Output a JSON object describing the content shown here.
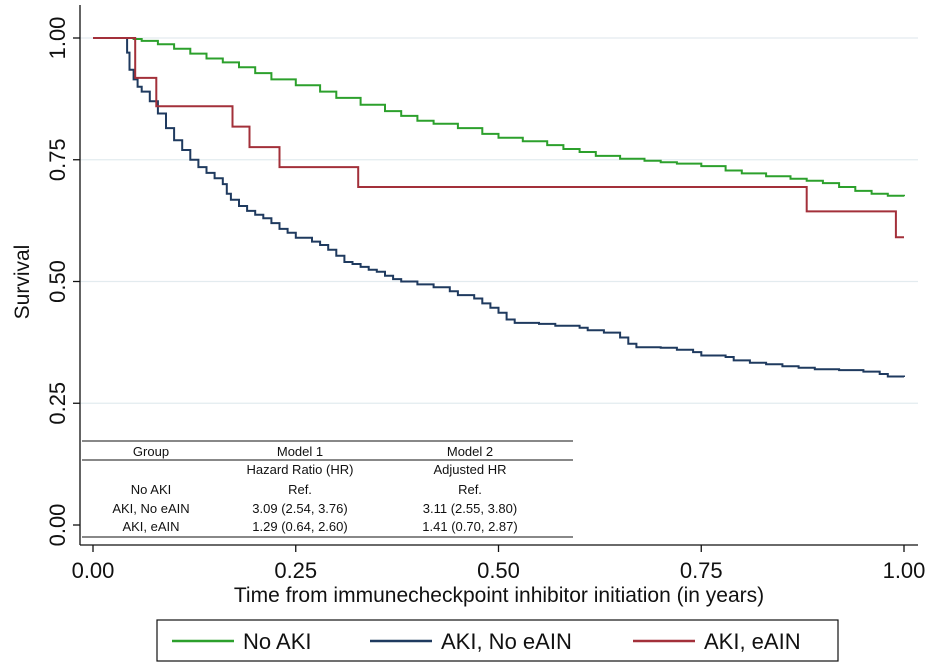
{
  "chart_data": {
    "type": "line",
    "title": "",
    "xlabel": "Time from immunecheckpoint inhibitor initiation (in years)",
    "ylabel": "Survival",
    "xlim": [
      0,
      1
    ],
    "ylim": [
      0,
      1
    ],
    "x_ticks": [
      0,
      0.25,
      0.5,
      0.75,
      1
    ],
    "x_tick_labels": [
      "0.00",
      "0.25",
      "0.50",
      "0.75",
      "1.00"
    ],
    "y_ticks": [
      0,
      0.25,
      0.5,
      0.75,
      1
    ],
    "y_tick_labels": [
      "0.00",
      "0.25",
      "0.50",
      "0.75",
      "1.00"
    ],
    "grid": "horizontal",
    "legend_position": "bottom",
    "series": [
      {
        "name": "No AKI",
        "color": "#2ca02c",
        "step": true,
        "points": [
          [
            0,
            1
          ],
          [
            0.04,
            1
          ],
          [
            0.05,
            0.998
          ],
          [
            0.06,
            0.994
          ],
          [
            0.08,
            0.987
          ],
          [
            0.1,
            0.978
          ],
          [
            0.12,
            0.968
          ],
          [
            0.14,
            0.958
          ],
          [
            0.16,
            0.95
          ],
          [
            0.18,
            0.94
          ],
          [
            0.2,
            0.928
          ],
          [
            0.22,
            0.915
          ],
          [
            0.25,
            0.903
          ],
          [
            0.28,
            0.89
          ],
          [
            0.3,
            0.877
          ],
          [
            0.33,
            0.863
          ],
          [
            0.36,
            0.85
          ],
          [
            0.38,
            0.84
          ],
          [
            0.4,
            0.83
          ],
          [
            0.42,
            0.824
          ],
          [
            0.45,
            0.815
          ],
          [
            0.48,
            0.803
          ],
          [
            0.5,
            0.795
          ],
          [
            0.53,
            0.788
          ],
          [
            0.56,
            0.78
          ],
          [
            0.58,
            0.772
          ],
          [
            0.6,
            0.766
          ],
          [
            0.62,
            0.758
          ],
          [
            0.65,
            0.752
          ],
          [
            0.68,
            0.748
          ],
          [
            0.7,
            0.745
          ],
          [
            0.72,
            0.742
          ],
          [
            0.75,
            0.737
          ],
          [
            0.78,
            0.728
          ],
          [
            0.8,
            0.722
          ],
          [
            0.83,
            0.716
          ],
          [
            0.86,
            0.711
          ],
          [
            0.88,
            0.707
          ],
          [
            0.9,
            0.702
          ],
          [
            0.92,
            0.694
          ],
          [
            0.94,
            0.686
          ],
          [
            0.96,
            0.68
          ],
          [
            0.98,
            0.676
          ],
          [
            1.0,
            0.675
          ]
        ]
      },
      {
        "name": "AKI, No eAIN",
        "color": "#1f3a5f",
        "step": true,
        "points": [
          [
            0,
            1
          ],
          [
            0.04,
            1
          ],
          [
            0.042,
            0.97
          ],
          [
            0.045,
            0.935
          ],
          [
            0.05,
            0.915
          ],
          [
            0.055,
            0.9
          ],
          [
            0.06,
            0.89
          ],
          [
            0.07,
            0.87
          ],
          [
            0.08,
            0.845
          ],
          [
            0.09,
            0.815
          ],
          [
            0.1,
            0.79
          ],
          [
            0.11,
            0.77
          ],
          [
            0.12,
            0.75
          ],
          [
            0.13,
            0.735
          ],
          [
            0.14,
            0.723
          ],
          [
            0.15,
            0.712
          ],
          [
            0.16,
            0.7
          ],
          [
            0.165,
            0.68
          ],
          [
            0.17,
            0.668
          ],
          [
            0.18,
            0.655
          ],
          [
            0.19,
            0.645
          ],
          [
            0.2,
            0.637
          ],
          [
            0.21,
            0.63
          ],
          [
            0.22,
            0.62
          ],
          [
            0.23,
            0.608
          ],
          [
            0.24,
            0.6
          ],
          [
            0.25,
            0.59
          ],
          [
            0.27,
            0.582
          ],
          [
            0.28,
            0.575
          ],
          [
            0.29,
            0.565
          ],
          [
            0.3,
            0.553
          ],
          [
            0.31,
            0.54
          ],
          [
            0.32,
            0.536
          ],
          [
            0.33,
            0.53
          ],
          [
            0.34,
            0.524
          ],
          [
            0.35,
            0.52
          ],
          [
            0.36,
            0.512
          ],
          [
            0.37,
            0.505
          ],
          [
            0.38,
            0.5
          ],
          [
            0.4,
            0.494
          ],
          [
            0.42,
            0.488
          ],
          [
            0.44,
            0.48
          ],
          [
            0.45,
            0.472
          ],
          [
            0.47,
            0.465
          ],
          [
            0.48,
            0.455
          ],
          [
            0.49,
            0.446
          ],
          [
            0.5,
            0.436
          ],
          [
            0.51,
            0.422
          ],
          [
            0.52,
            0.415
          ],
          [
            0.55,
            0.413
          ],
          [
            0.57,
            0.409
          ],
          [
            0.6,
            0.405
          ],
          [
            0.61,
            0.4
          ],
          [
            0.63,
            0.395
          ],
          [
            0.65,
            0.385
          ],
          [
            0.66,
            0.372
          ],
          [
            0.67,
            0.365
          ],
          [
            0.7,
            0.364
          ],
          [
            0.72,
            0.36
          ],
          [
            0.74,
            0.355
          ],
          [
            0.75,
            0.348
          ],
          [
            0.78,
            0.345
          ],
          [
            0.79,
            0.338
          ],
          [
            0.81,
            0.333
          ],
          [
            0.83,
            0.33
          ],
          [
            0.85,
            0.326
          ],
          [
            0.87,
            0.323
          ],
          [
            0.89,
            0.32
          ],
          [
            0.92,
            0.318
          ],
          [
            0.95,
            0.315
          ],
          [
            0.97,
            0.31
          ],
          [
            0.98,
            0.305
          ],
          [
            1.0,
            0.304
          ]
        ]
      },
      {
        "name": "AKI, eAIN",
        "color": "#a3303a",
        "step": true,
        "points": [
          [
            0,
            1
          ],
          [
            0.052,
            1
          ],
          [
            0.052,
            0.918
          ],
          [
            0.078,
            0.918
          ],
          [
            0.078,
            0.86
          ],
          [
            0.172,
            0.86
          ],
          [
            0.172,
            0.818
          ],
          [
            0.193,
            0.818
          ],
          [
            0.193,
            0.776
          ],
          [
            0.23,
            0.776
          ],
          [
            0.23,
            0.735
          ],
          [
            0.327,
            0.735
          ],
          [
            0.327,
            0.694
          ],
          [
            0.88,
            0.694
          ],
          [
            0.88,
            0.644
          ],
          [
            0.99,
            0.644
          ],
          [
            0.99,
            0.591
          ],
          [
            1.0,
            0.591
          ]
        ]
      }
    ]
  },
  "table": {
    "headers": [
      "Group",
      "Model 1",
      "Model 2"
    ],
    "subheaders": [
      "",
      "Hazard Ratio (HR)",
      "Adjusted HR"
    ],
    "rows": [
      [
        "No AKI",
        "Ref.",
        "Ref."
      ],
      [
        "AKI, No eAIN",
        "3.09 (2.54, 3.76)",
        "3.11 (2.55, 3.80)"
      ],
      [
        "AKI, eAIN",
        "1.29 (0.64, 2.60)",
        "1.41 (0.70, 2.87)"
      ]
    ]
  }
}
